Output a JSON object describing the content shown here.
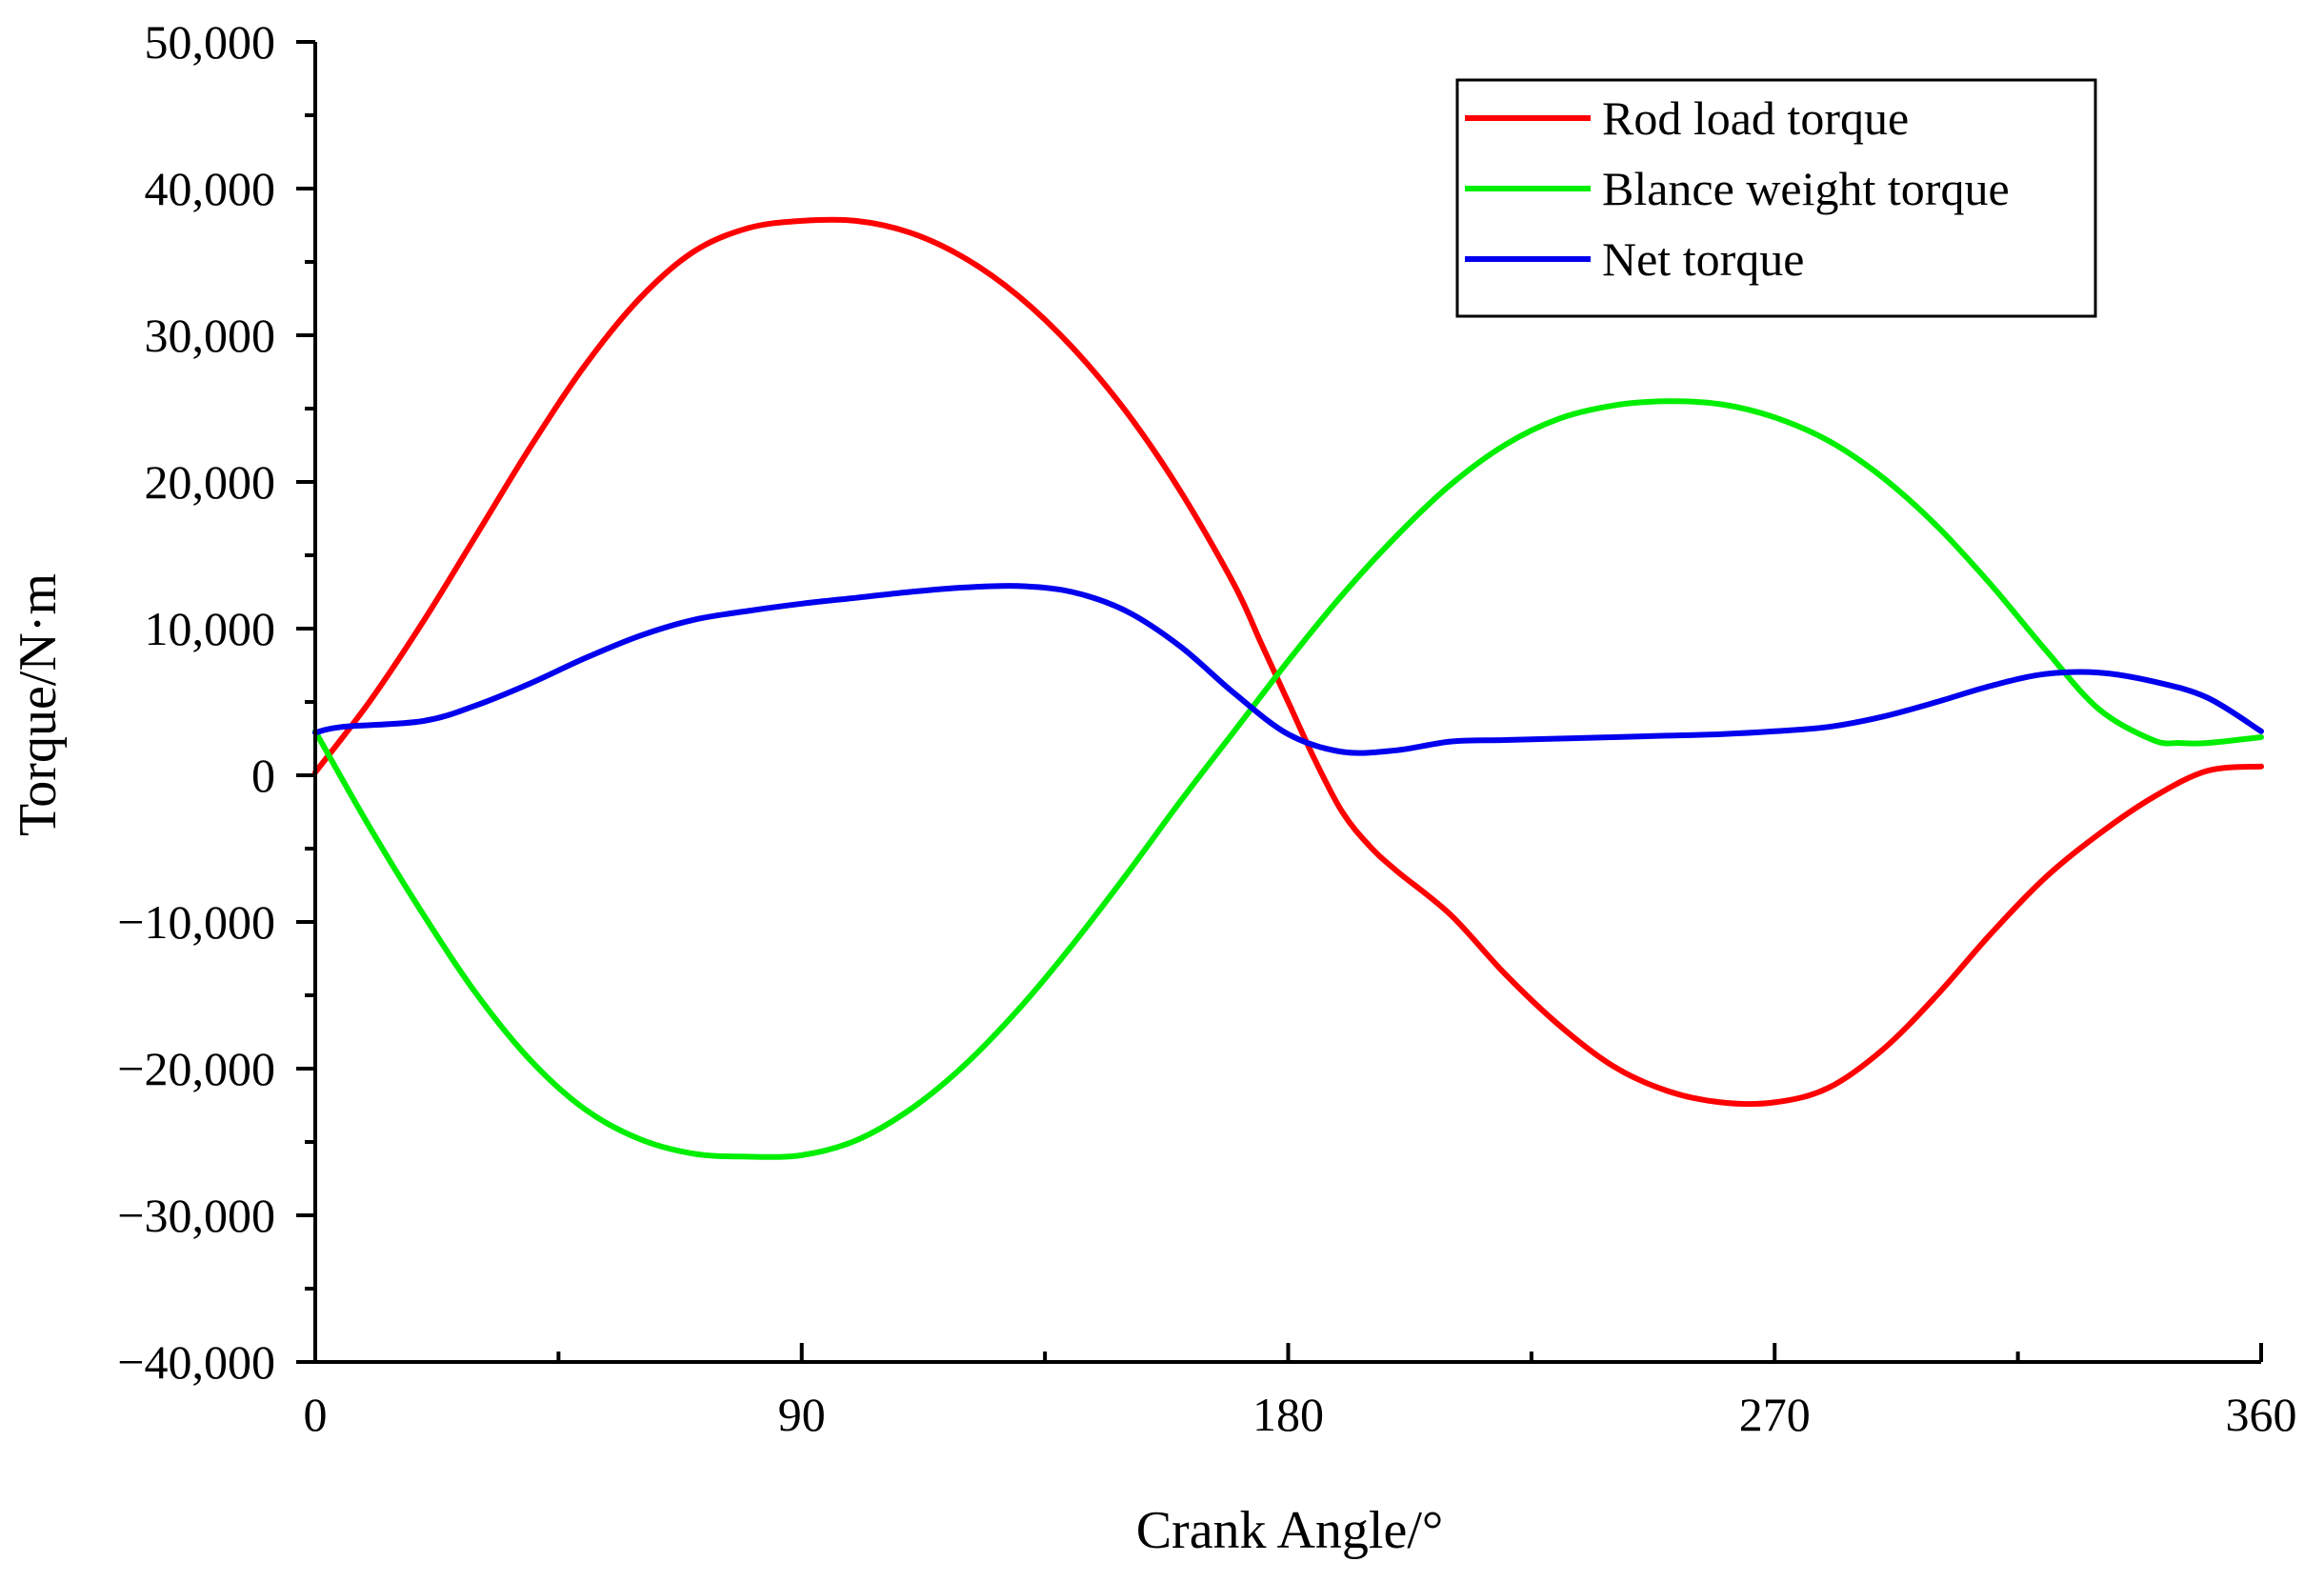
{
  "chart_data": {
    "type": "line",
    "title": "",
    "xlabel": "Crank Angle/°",
    "ylabel": "Torque/N·m",
    "xlim": [
      0,
      360
    ],
    "ylim": [
      -40000,
      50000
    ],
    "x_ticks": [
      0,
      90,
      180,
      270,
      360
    ],
    "x_tick_labels": [
      "0",
      "90",
      "180",
      "270",
      "360"
    ],
    "y_ticks": [
      -40000,
      -30000,
      -20000,
      -10000,
      0,
      10000,
      20000,
      30000,
      40000,
      50000
    ],
    "y_tick_labels": [
      "−40,000",
      "−30,000",
      "−20,000",
      "−10,000",
      "0",
      "10,000",
      "20,000",
      "30,000",
      "40,000",
      "50,000"
    ],
    "grid": false,
    "legend_position": "top-right",
    "series": [
      {
        "name": "Rod load torque",
        "color": "#ff0000",
        "points": [
          [
            0,
            200
          ],
          [
            10,
            5000
          ],
          [
            20,
            10500
          ],
          [
            30,
            16500
          ],
          [
            40,
            22500
          ],
          [
            50,
            28000
          ],
          [
            60,
            32500
          ],
          [
            70,
            35700
          ],
          [
            80,
            37300
          ],
          [
            90,
            37800
          ],
          [
            100,
            37800
          ],
          [
            110,
            37000
          ],
          [
            120,
            35300
          ],
          [
            130,
            32700
          ],
          [
            140,
            29200
          ],
          [
            150,
            24800
          ],
          [
            160,
            19400
          ],
          [
            170,
            13000
          ],
          [
            175,
            9000
          ],
          [
            180,
            5000
          ],
          [
            185,
            1000
          ],
          [
            190,
            -2500
          ],
          [
            195,
            -4800
          ],
          [
            200,
            -6500
          ],
          [
            210,
            -9500
          ],
          [
            220,
            -13500
          ],
          [
            230,
            -17000
          ],
          [
            240,
            -19800
          ],
          [
            250,
            -21500
          ],
          [
            260,
            -22300
          ],
          [
            270,
            -22300
          ],
          [
            280,
            -21300
          ],
          [
            290,
            -18700
          ],
          [
            300,
            -15000
          ],
          [
            310,
            -10800
          ],
          [
            320,
            -7000
          ],
          [
            330,
            -4000
          ],
          [
            340,
            -1500
          ],
          [
            350,
            300
          ],
          [
            360,
            600
          ]
        ]
      },
      {
        "name": "Blance weight torque",
        "color": "#00ee00",
        "points": [
          [
            0,
            3000
          ],
          [
            10,
            -3500
          ],
          [
            20,
            -9500
          ],
          [
            30,
            -15000
          ],
          [
            40,
            -19500
          ],
          [
            50,
            -22800
          ],
          [
            60,
            -24800
          ],
          [
            70,
            -25800
          ],
          [
            80,
            -26000
          ],
          [
            90,
            -25900
          ],
          [
            100,
            -24900
          ],
          [
            110,
            -22800
          ],
          [
            120,
            -19800
          ],
          [
            130,
            -16000
          ],
          [
            140,
            -11600
          ],
          [
            150,
            -6800
          ],
          [
            160,
            -1800
          ],
          [
            170,
            3000
          ],
          [
            180,
            7800
          ],
          [
            190,
            12300
          ],
          [
            200,
            16300
          ],
          [
            210,
            19800
          ],
          [
            220,
            22500
          ],
          [
            230,
            24300
          ],
          [
            240,
            25200
          ],
          [
            250,
            25500
          ],
          [
            260,
            25300
          ],
          [
            270,
            24400
          ],
          [
            280,
            22800
          ],
          [
            290,
            20300
          ],
          [
            300,
            17000
          ],
          [
            310,
            13000
          ],
          [
            320,
            8600
          ],
          [
            330,
            4500
          ],
          [
            340,
            2400
          ],
          [
            345,
            2200
          ],
          [
            350,
            2200
          ],
          [
            360,
            2600
          ]
        ]
      },
      {
        "name": "Net torque",
        "color": "#0000ee",
        "points": [
          [
            0,
            2900
          ],
          [
            5,
            3300
          ],
          [
            20,
            3700
          ],
          [
            30,
            4800
          ],
          [
            40,
            6300
          ],
          [
            50,
            8000
          ],
          [
            60,
            9500
          ],
          [
            70,
            10600
          ],
          [
            80,
            11200
          ],
          [
            90,
            11700
          ],
          [
            100,
            12100
          ],
          [
            110,
            12500
          ],
          [
            120,
            12800
          ],
          [
            130,
            12900
          ],
          [
            140,
            12500
          ],
          [
            150,
            11200
          ],
          [
            160,
            8800
          ],
          [
            170,
            5600
          ],
          [
            180,
            2800
          ],
          [
            190,
            1600
          ],
          [
            200,
            1700
          ],
          [
            210,
            2300
          ],
          [
            220,
            2400
          ],
          [
            230,
            2500
          ],
          [
            240,
            2600
          ],
          [
            250,
            2700
          ],
          [
            260,
            2800
          ],
          [
            270,
            3000
          ],
          [
            280,
            3300
          ],
          [
            290,
            4000
          ],
          [
            300,
            5000
          ],
          [
            310,
            6100
          ],
          [
            320,
            6900
          ],
          [
            330,
            7000
          ],
          [
            340,
            6400
          ],
          [
            350,
            5300
          ],
          [
            360,
            3000
          ]
        ]
      }
    ]
  }
}
